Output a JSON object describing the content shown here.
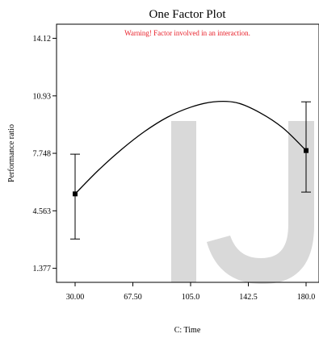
{
  "chart_data": {
    "type": "line",
    "title": "One Factor Plot",
    "warning": "Warning! Factor involved in an interaction.",
    "xlabel": "C: Time",
    "ylabel": "Performance ratio",
    "x_ticks": [
      "30.00",
      "67.50",
      "105.0",
      "142.5",
      "180.0"
    ],
    "x_tick_values": [
      30,
      67.5,
      105,
      142.5,
      180
    ],
    "y_ticks": [
      "1.377",
      "4.563",
      "7.748",
      "10.93",
      "14.12"
    ],
    "y_tick_values": [
      1.377,
      4.563,
      7.748,
      10.93,
      14.12
    ],
    "xlim": [
      30,
      180
    ],
    "ylim": [
      0.6,
      14.9
    ],
    "curve": {
      "x": [
        30,
        45,
        60,
        75,
        90,
        105,
        120,
        135,
        150,
        165,
        180
      ],
      "y": [
        5.5,
        6.8,
        7.95,
        8.95,
        9.75,
        10.3,
        10.6,
        10.55,
        10.0,
        9.15,
        7.9
      ]
    },
    "points": [
      {
        "x": 30,
        "y": 5.5,
        "err_low": 3.0,
        "err_high": 7.7
      },
      {
        "x": 180,
        "y": 7.9,
        "err_low": 5.6,
        "err_high": 10.6
      }
    ],
    "watermark": "IJ",
    "colors": {
      "line": "#000000",
      "warning": "#e8202a",
      "watermark": "#d9d9d9"
    }
  }
}
